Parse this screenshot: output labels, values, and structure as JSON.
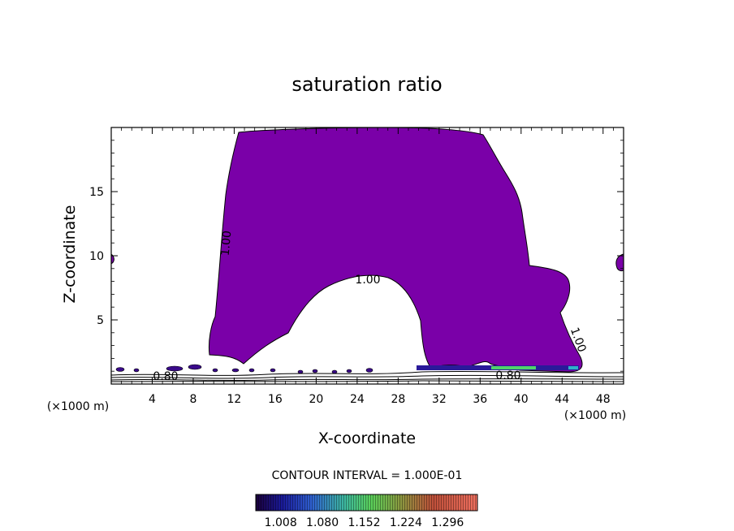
{
  "chart_data": {
    "type": "contour",
    "title": "saturation ratio",
    "xlabel": "X-coordinate",
    "ylabel": "Z-coordinate",
    "x_unit": "(×1000 m)",
    "xlim": [
      0,
      50
    ],
    "ylim": [
      0,
      20
    ],
    "x_ticks": [
      4,
      8,
      12,
      16,
      20,
      24,
      28,
      32,
      36,
      40,
      44,
      48
    ],
    "y_ticks": [
      5,
      10,
      15
    ],
    "contour_labels": [
      "1.00",
      "1.00",
      "1.00",
      "0.80",
      "0.80"
    ],
    "contour_interval_text": "CONTOUR INTERVAL = 1.000E-01",
    "colorbar": {
      "tick_labels": [
        "1.008",
        "1.080",
        "1.152",
        "1.224",
        "1.296"
      ]
    },
    "fill_color": "#7a00a8"
  }
}
